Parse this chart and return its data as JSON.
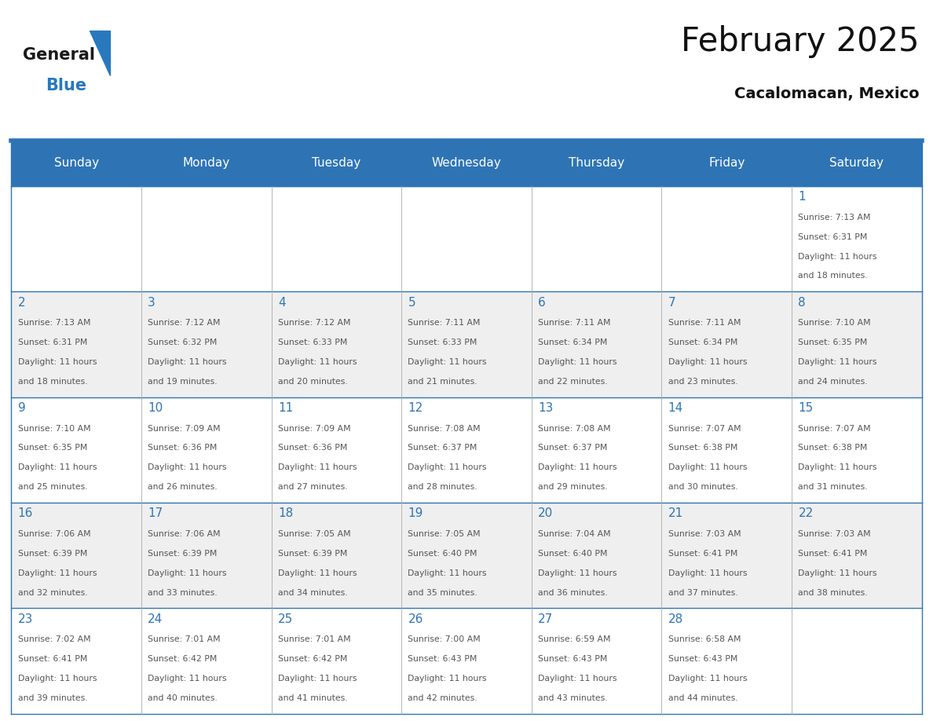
{
  "title": "February 2025",
  "subtitle": "Cacalomacan, Mexico",
  "header_color": "#2E74B5",
  "header_text_color": "#FFFFFF",
  "day_names": [
    "Sunday",
    "Monday",
    "Tuesday",
    "Wednesday",
    "Thursday",
    "Friday",
    "Saturday"
  ],
  "bg_color": "#FFFFFF",
  "cell_bg_even": "#EFEFEF",
  "cell_bg_odd": "#FFFFFF",
  "day_num_color": "#2E74B5",
  "text_color": "#555555",
  "border_color": "#2E74B5",
  "grid_color": "#AAAAAA",
  "logo_general_color": "#1A1A1A",
  "logo_blue_color": "#2878BE",
  "calendar": [
    [
      {
        "day": null,
        "sunrise": null,
        "sunset": null,
        "daylight": null
      },
      {
        "day": null,
        "sunrise": null,
        "sunset": null,
        "daylight": null
      },
      {
        "day": null,
        "sunrise": null,
        "sunset": null,
        "daylight": null
      },
      {
        "day": null,
        "sunrise": null,
        "sunset": null,
        "daylight": null
      },
      {
        "day": null,
        "sunrise": null,
        "sunset": null,
        "daylight": null
      },
      {
        "day": null,
        "sunrise": null,
        "sunset": null,
        "daylight": null
      },
      {
        "day": 1,
        "sunrise": "7:13 AM",
        "sunset": "6:31 PM",
        "daylight": "11 hours and 18 minutes."
      }
    ],
    [
      {
        "day": 2,
        "sunrise": "7:13 AM",
        "sunset": "6:31 PM",
        "daylight": "11 hours and 18 minutes."
      },
      {
        "day": 3,
        "sunrise": "7:12 AM",
        "sunset": "6:32 PM",
        "daylight": "11 hours and 19 minutes."
      },
      {
        "day": 4,
        "sunrise": "7:12 AM",
        "sunset": "6:33 PM",
        "daylight": "11 hours and 20 minutes."
      },
      {
        "day": 5,
        "sunrise": "7:11 AM",
        "sunset": "6:33 PM",
        "daylight": "11 hours and 21 minutes."
      },
      {
        "day": 6,
        "sunrise": "7:11 AM",
        "sunset": "6:34 PM",
        "daylight": "11 hours and 22 minutes."
      },
      {
        "day": 7,
        "sunrise": "7:11 AM",
        "sunset": "6:34 PM",
        "daylight": "11 hours and 23 minutes."
      },
      {
        "day": 8,
        "sunrise": "7:10 AM",
        "sunset": "6:35 PM",
        "daylight": "11 hours and 24 minutes."
      }
    ],
    [
      {
        "day": 9,
        "sunrise": "7:10 AM",
        "sunset": "6:35 PM",
        "daylight": "11 hours and 25 minutes."
      },
      {
        "day": 10,
        "sunrise": "7:09 AM",
        "sunset": "6:36 PM",
        "daylight": "11 hours and 26 minutes."
      },
      {
        "day": 11,
        "sunrise": "7:09 AM",
        "sunset": "6:36 PM",
        "daylight": "11 hours and 27 minutes."
      },
      {
        "day": 12,
        "sunrise": "7:08 AM",
        "sunset": "6:37 PM",
        "daylight": "11 hours and 28 minutes."
      },
      {
        "day": 13,
        "sunrise": "7:08 AM",
        "sunset": "6:37 PM",
        "daylight": "11 hours and 29 minutes."
      },
      {
        "day": 14,
        "sunrise": "7:07 AM",
        "sunset": "6:38 PM",
        "daylight": "11 hours and 30 minutes."
      },
      {
        "day": 15,
        "sunrise": "7:07 AM",
        "sunset": "6:38 PM",
        "daylight": "11 hours and 31 minutes."
      }
    ],
    [
      {
        "day": 16,
        "sunrise": "7:06 AM",
        "sunset": "6:39 PM",
        "daylight": "11 hours and 32 minutes."
      },
      {
        "day": 17,
        "sunrise": "7:06 AM",
        "sunset": "6:39 PM",
        "daylight": "11 hours and 33 minutes."
      },
      {
        "day": 18,
        "sunrise": "7:05 AM",
        "sunset": "6:39 PM",
        "daylight": "11 hours and 34 minutes."
      },
      {
        "day": 19,
        "sunrise": "7:05 AM",
        "sunset": "6:40 PM",
        "daylight": "11 hours and 35 minutes."
      },
      {
        "day": 20,
        "sunrise": "7:04 AM",
        "sunset": "6:40 PM",
        "daylight": "11 hours and 36 minutes."
      },
      {
        "day": 21,
        "sunrise": "7:03 AM",
        "sunset": "6:41 PM",
        "daylight": "11 hours and 37 minutes."
      },
      {
        "day": 22,
        "sunrise": "7:03 AM",
        "sunset": "6:41 PM",
        "daylight": "11 hours and 38 minutes."
      }
    ],
    [
      {
        "day": 23,
        "sunrise": "7:02 AM",
        "sunset": "6:41 PM",
        "daylight": "11 hours and 39 minutes."
      },
      {
        "day": 24,
        "sunrise": "7:01 AM",
        "sunset": "6:42 PM",
        "daylight": "11 hours and 40 minutes."
      },
      {
        "day": 25,
        "sunrise": "7:01 AM",
        "sunset": "6:42 PM",
        "daylight": "11 hours and 41 minutes."
      },
      {
        "day": 26,
        "sunrise": "7:00 AM",
        "sunset": "6:43 PM",
        "daylight": "11 hours and 42 minutes."
      },
      {
        "day": 27,
        "sunrise": "6:59 AM",
        "sunset": "6:43 PM",
        "daylight": "11 hours and 43 minutes."
      },
      {
        "day": 28,
        "sunrise": "6:58 AM",
        "sunset": "6:43 PM",
        "daylight": "11 hours and 44 minutes."
      },
      {
        "day": null,
        "sunrise": null,
        "sunset": null,
        "daylight": null
      }
    ]
  ]
}
